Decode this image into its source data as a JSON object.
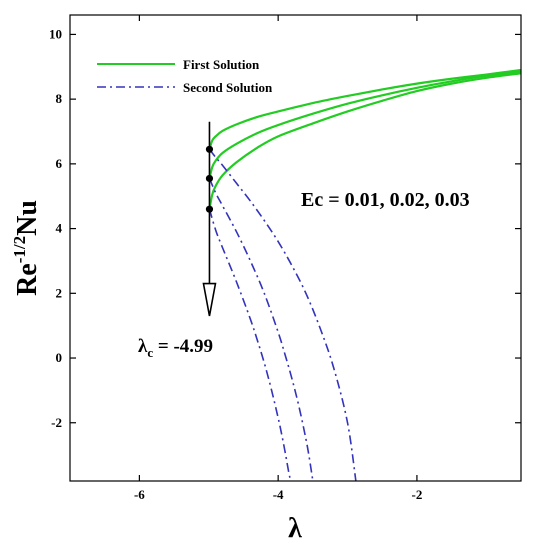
{
  "chart_data": {
    "type": "line",
    "title": "",
    "xlabel": "λ",
    "ylabel_base": "Re",
    "ylabel_sup": "-1/2",
    "ylabel_tail": "Nu",
    "xlim": [
      -7,
      -0.5
    ],
    "ylim": [
      -3.8,
      10.6
    ],
    "xticks": [
      -6,
      -4,
      -2
    ],
    "xtick_labels": [
      "-6",
      "-4",
      "-2"
    ],
    "yticks": [
      -2,
      0,
      2,
      4,
      6,
      8,
      10
    ],
    "ytick_labels": [
      "-2",
      "0",
      "2",
      "4",
      "6",
      "8",
      "10"
    ],
    "grid": false,
    "legend_position": "top-left",
    "legend": [
      {
        "label": "First Solution",
        "color": "#22cc22",
        "style": "solid"
      },
      {
        "label": "Second Solution",
        "color": "#3333bb",
        "style": "dashdot"
      }
    ],
    "critical_point": {
      "label_main": "λ",
      "label_sub": "c",
      "label_value": " = -4.99",
      "x": -4.99
    },
    "parameter_label": "Ec = 0.01, 0.02, 0.03",
    "series": [
      {
        "solution": "first",
        "ec": 0.01,
        "x": [
          -4.99,
          -4.95,
          -4.9,
          -4.8,
          -4.6,
          -4.3,
          -4.0,
          -3.5,
          -3.0,
          -2.5,
          -2.0,
          -1.5,
          -1.0,
          -0.5
        ],
        "y": [
          6.45,
          6.72,
          6.85,
          7.02,
          7.22,
          7.45,
          7.62,
          7.88,
          8.1,
          8.3,
          8.48,
          8.63,
          8.76,
          8.9
        ]
      },
      {
        "solution": "first",
        "ec": 0.02,
        "x": [
          -4.99,
          -4.95,
          -4.9,
          -4.8,
          -4.6,
          -4.3,
          -4.0,
          -3.5,
          -3.0,
          -2.5,
          -2.0,
          -1.5,
          -1.0,
          -0.5
        ],
        "y": [
          5.55,
          5.9,
          6.1,
          6.34,
          6.62,
          6.95,
          7.2,
          7.55,
          7.86,
          8.12,
          8.35,
          8.55,
          8.72,
          8.85
        ]
      },
      {
        "solution": "first",
        "ec": 0.03,
        "x": [
          -4.99,
          -4.95,
          -4.9,
          -4.8,
          -4.6,
          -4.3,
          -4.0,
          -3.5,
          -3.0,
          -2.5,
          -2.0,
          -1.5,
          -1.0,
          -0.5
        ],
        "y": [
          4.6,
          5.05,
          5.32,
          5.65,
          6.05,
          6.5,
          6.85,
          7.25,
          7.62,
          7.95,
          8.25,
          8.48,
          8.66,
          8.8
        ]
      },
      {
        "solution": "second",
        "ec": 0.01,
        "x": [
          -4.99,
          -4.9,
          -4.8,
          -4.6,
          -4.4,
          -4.2,
          -4.0,
          -3.8,
          -3.6,
          -3.4,
          -3.2,
          -3.0,
          -2.88
        ],
        "y": [
          6.45,
          6.2,
          5.95,
          5.4,
          4.85,
          4.25,
          3.6,
          2.85,
          2.0,
          0.95,
          -0.3,
          -2.0,
          -3.8
        ]
      },
      {
        "solution": "second",
        "ec": 0.02,
        "x": [
          -4.99,
          -4.9,
          -4.8,
          -4.6,
          -4.4,
          -4.2,
          -4.0,
          -3.9,
          -3.8,
          -3.7,
          -3.6,
          -3.55,
          -3.5
        ],
        "y": [
          5.55,
          5.1,
          4.7,
          3.9,
          3.0,
          2.0,
          0.8,
          0.1,
          -0.65,
          -1.5,
          -2.5,
          -3.1,
          -3.8
        ]
      },
      {
        "solution": "second",
        "ec": 0.03,
        "x": [
          -4.99,
          -4.9,
          -4.8,
          -4.6,
          -4.4,
          -4.3,
          -4.2,
          -4.1,
          -4.0,
          -3.95,
          -3.9,
          -3.85,
          -3.82
        ],
        "y": [
          4.6,
          3.95,
          3.4,
          2.35,
          1.2,
          0.55,
          -0.15,
          -0.95,
          -1.85,
          -2.35,
          -2.9,
          -3.5,
          -3.8
        ]
      }
    ]
  }
}
